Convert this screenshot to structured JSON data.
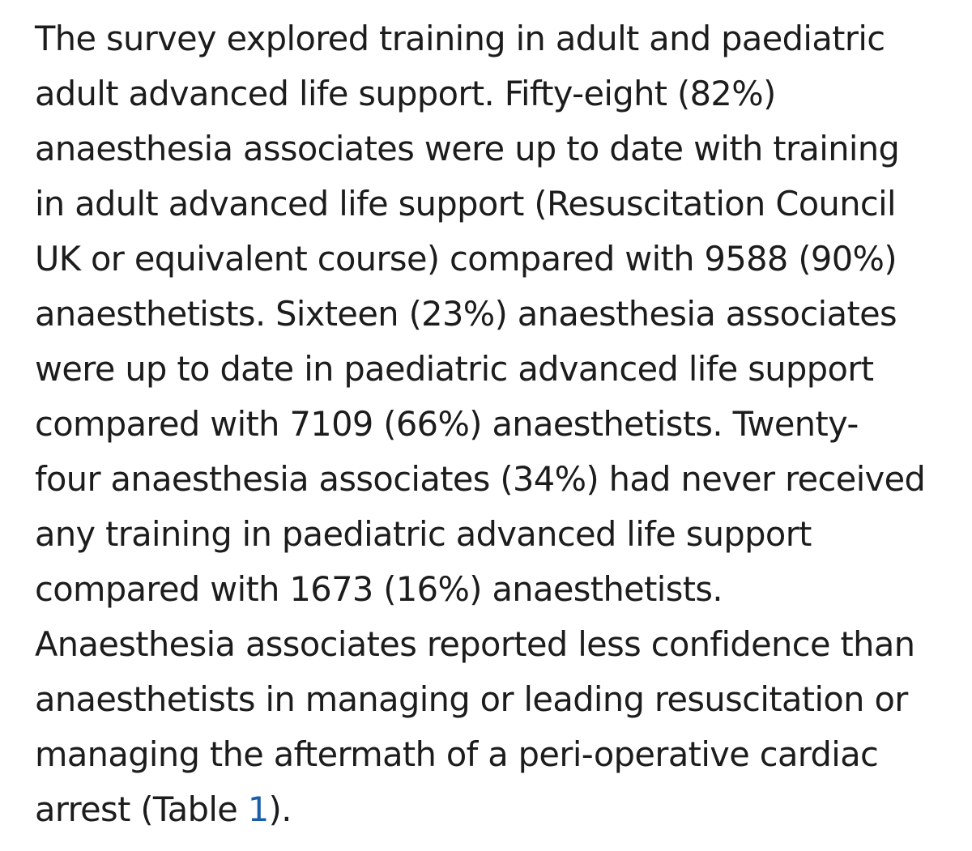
{
  "paragraph": {
    "lines": [
      "The survey explored training in adult and paediatric",
      "adult advanced life support. Fifty-eight (82%)",
      "anaesthesia associates were up to date with training",
      "in adult advanced life support (Resuscitation Council",
      "UK or equivalent course) compared with 9588 (90%)",
      "anaesthetists. Sixteen (23%) anaesthesia associates",
      "were up to date in paediatric advanced life support",
      "compared with 7109 (66%) anaesthetists. Twenty-",
      "four anaesthesia associates (34%) had never received",
      "any training in paediatric advanced life support",
      "compared with 1673 (16%) anaesthetists.",
      "Anaesthesia associates reported less confidence than",
      "anaesthetists in managing or leading resuscitation or",
      "managing the aftermath of a peri-operative cardiac"
    ],
    "last_line": {
      "before": "arrest (Table ",
      "link": "1",
      "after": ")."
    }
  },
  "colors": {
    "text": "#1c1c1c",
    "link": "#1a5ea8",
    "background": "#ffffff"
  }
}
